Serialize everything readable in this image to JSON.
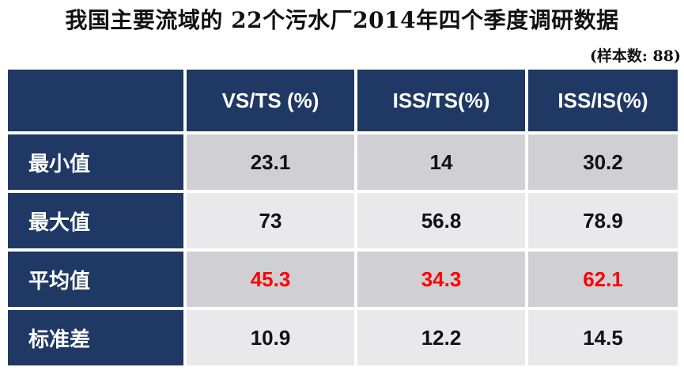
{
  "title": "我国主要流域的 22个污水厂2014年四个季度调研数据",
  "subtitle": "(样本数: 88)",
  "table": {
    "corner": "",
    "columns": [
      "VS/TS (%)",
      "ISS/TS(%)",
      "ISS/IS(%)"
    ],
    "rows": [
      {
        "label": "最小值",
        "values": [
          "23.1",
          "14",
          "30.2"
        ]
      },
      {
        "label": "最大值",
        "values": [
          "73",
          "56.8",
          "78.9"
        ]
      },
      {
        "label": "平均值",
        "values": [
          "45.3",
          "34.3",
          "62.1"
        ]
      },
      {
        "label": "标准差",
        "values": [
          "10.9",
          "12.2",
          "14.5"
        ]
      }
    ]
  },
  "colors": {
    "header_bg": "#1f3864",
    "row_odd_bg": "#d0d0d4",
    "row_even_bg": "#e9e9eb",
    "highlight_text": "#ff0000"
  }
}
